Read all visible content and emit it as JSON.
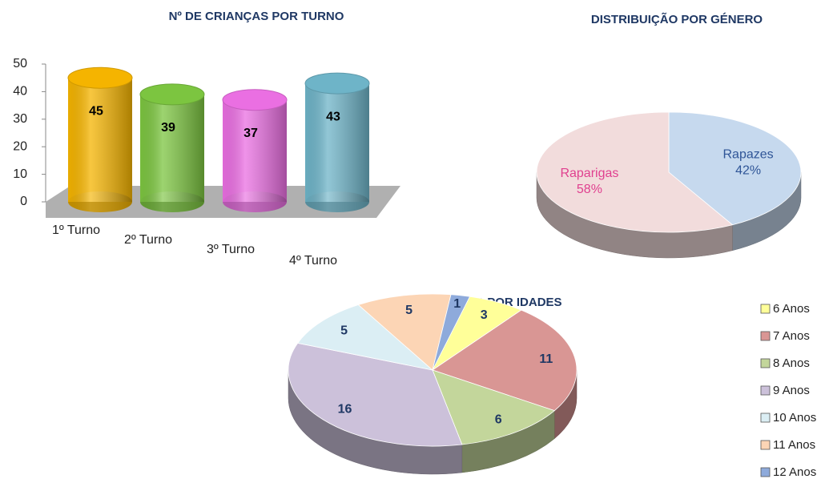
{
  "chart_data": [
    {
      "type": "bar",
      "title": "Nº DE CRIANÇAS POR TURNO",
      "categories": [
        "1º Turno",
        "2º Turno",
        "3º Turno",
        "4º Turno"
      ],
      "values": [
        45,
        39,
        37,
        43
      ],
      "colors": [
        "#f5b400",
        "#7cc540",
        "#ea6fe2",
        "#6eb4c8"
      ],
      "ylim": [
        0,
        50
      ],
      "yticks": [
        0,
        10,
        20,
        30,
        40,
        50
      ],
      "grid": false
    },
    {
      "type": "pie",
      "title": "DISTRIBUIÇÃO POR GÉNERO",
      "categories": [
        "Rapazes",
        "Raparigas"
      ],
      "values": [
        42,
        58
      ],
      "value_labels": [
        "42%",
        "58%"
      ],
      "colors": [
        "#c6d9ee",
        "#f2dcdc"
      ],
      "label_colors": [
        "#2f5597",
        "#e0408f"
      ]
    },
    {
      "type": "pie",
      "title": "Nº CRIANÇAS POR IDADES",
      "categories": [
        "6 Anos",
        "7 Anos",
        "8 Anos",
        "9 Anos",
        "10 Anos",
        "11 Anos",
        "12 Anos"
      ],
      "values": [
        3,
        11,
        6,
        16,
        5,
        5,
        1
      ],
      "colors": [
        "#ffff99",
        "#d99694",
        "#c3d69b",
        "#ccc1da",
        "#dbeef4",
        "#fcd5b5",
        "#8eaadb"
      ],
      "legend": "right"
    }
  ]
}
